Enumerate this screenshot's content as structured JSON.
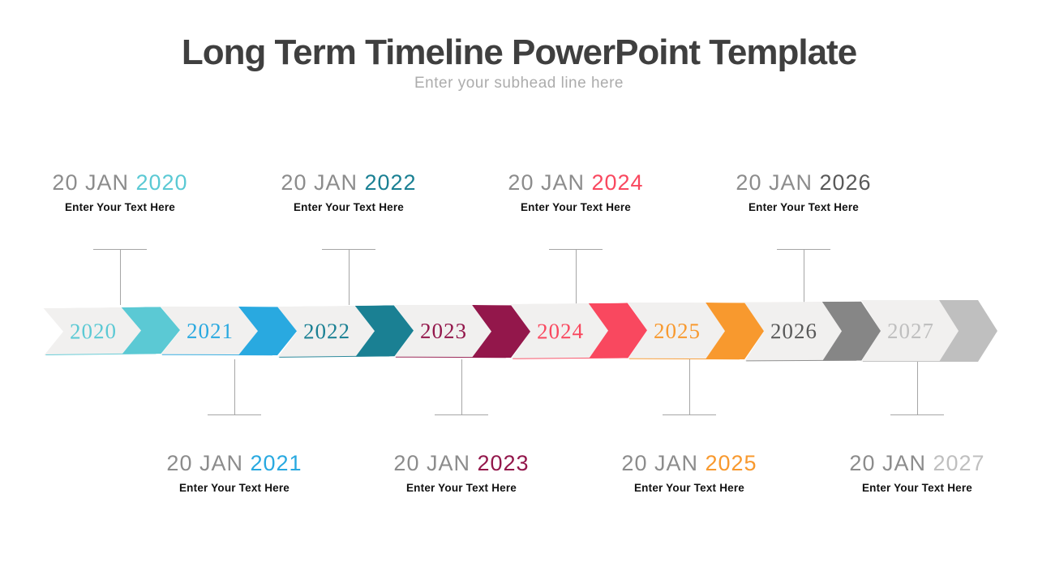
{
  "header": {
    "title": "Long Term Timeline PowerPoint Template",
    "subtitle": "Enter your subhead line here"
  },
  "timeline": {
    "body_color": "#f1f0ef",
    "connector_color": "#a6a6a6",
    "segments": [
      {
        "year": "2020",
        "color": "#5bc9d4",
        "text_color": "#5bc9d4"
      },
      {
        "year": "2021",
        "color": "#29a9e0",
        "text_color": "#29a9e0"
      },
      {
        "year": "2022",
        "color": "#1a8093",
        "text_color": "#1a8093"
      },
      {
        "year": "2023",
        "color": "#93174b",
        "text_color": "#93174b"
      },
      {
        "year": "2024",
        "color": "#f9485f",
        "text_color": "#f9485f"
      },
      {
        "year": "2025",
        "color": "#f8992e",
        "text_color": "#f8992e"
      },
      {
        "year": "2026",
        "color": "#868686",
        "text_color": "#595959"
      },
      {
        "year": "2027",
        "color": "#bfbfbf",
        "text_color": "#bfbfbf"
      }
    ]
  },
  "milestones": [
    {
      "prefix": "20 JAN",
      "year": "2020",
      "year_color": "#5bc9d4",
      "text": "Enter Your Text Here",
      "side": "top"
    },
    {
      "prefix": "20 JAN",
      "year": "2021",
      "year_color": "#29a9e0",
      "text": "Enter Your Text Here",
      "side": "bottom"
    },
    {
      "prefix": "20 JAN",
      "year": "2022",
      "year_color": "#1a8093",
      "text": "Enter Your Text Here",
      "side": "top"
    },
    {
      "prefix": "20 JAN",
      "year": "2023",
      "year_color": "#93174b",
      "text": "Enter Your Text Here",
      "side": "bottom"
    },
    {
      "prefix": "20 JAN",
      "year": "2024",
      "year_color": "#f9485f",
      "text": "Enter Your Text Here",
      "side": "top"
    },
    {
      "prefix": "20 JAN",
      "year": "2025",
      "year_color": "#f8992e",
      "text": "Enter Your Text Here",
      "side": "bottom"
    },
    {
      "prefix": "20 JAN",
      "year": "2026",
      "year_color": "#595959",
      "text": "Enter Your Text Here",
      "side": "top"
    },
    {
      "prefix": "20 JAN",
      "year": "2027",
      "year_color": "#bfbfbf",
      "text": "Enter Your Text Here",
      "side": "bottom"
    }
  ]
}
